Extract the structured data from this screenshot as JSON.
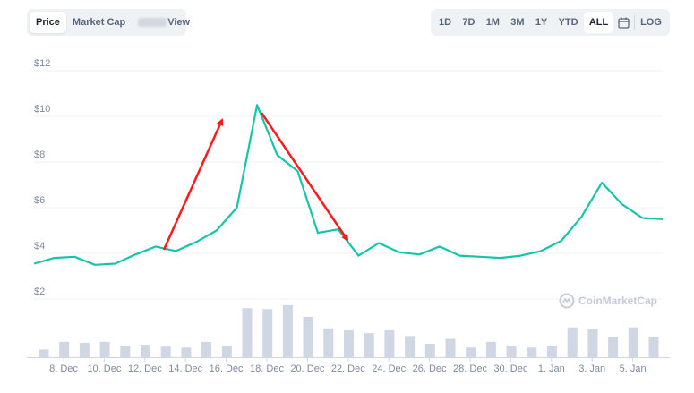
{
  "view_tabs": [
    {
      "label": "Price",
      "active": true
    },
    {
      "label": "Market Cap",
      "active": false
    },
    {
      "label": "View",
      "active": false,
      "label_prefix_obscured": true
    }
  ],
  "range_buttons": [
    {
      "label": "1D"
    },
    {
      "label": "7D"
    },
    {
      "label": "1M"
    },
    {
      "label": "3M"
    },
    {
      "label": "1Y"
    },
    {
      "label": "YTD"
    },
    {
      "label": "ALL",
      "active": true
    }
  ],
  "calendar_icon": "calendar-icon",
  "log_label": "LOG",
  "watermark": {
    "text": "CoinMarketCap",
    "icon": "coinmarketcap-logo-icon"
  },
  "colors": {
    "line": "#16c5a8",
    "volume": "#cfd6e4",
    "arrow": "#ff1a1a",
    "grid": "#eff2f5",
    "axis_text": "#808a9d"
  },
  "chart_data": {
    "type": "line",
    "x_tick_labels": [
      "8. Dec",
      "10. Dec",
      "12. Dec",
      "14. Dec",
      "16. Dec",
      "18. Dec",
      "20. Dec",
      "22. Dec",
      "24. Dec",
      "26. Dec",
      "28. Dec",
      "30. Dec",
      "1. Jan",
      "3. Jan",
      "5. Jan"
    ],
    "y_tick_labels": [
      "$2",
      "$4",
      "$6",
      "$8",
      "$10",
      "$12"
    ],
    "ylim": [
      0,
      12
    ],
    "grid": true,
    "series": [
      {
        "kind": "price",
        "values": [
          3.55,
          3.8,
          3.85,
          3.5,
          3.55,
          3.95,
          4.3,
          4.1,
          4.5,
          5.0,
          6.0,
          10.5,
          8.3,
          7.6,
          4.9,
          5.05,
          3.9,
          4.45,
          4.05,
          3.95,
          4.3,
          3.9,
          3.85,
          3.8,
          3.9,
          4.1,
          4.55,
          5.6,
          7.1,
          6.15,
          5.55,
          5.5
        ]
      },
      {
        "kind": "volume",
        "values": [
          0.08,
          0.16,
          0.15,
          0.16,
          0.12,
          0.13,
          0.11,
          0.1,
          0.16,
          0.12,
          0.51,
          0.5,
          0.54,
          0.42,
          0.3,
          0.28,
          0.25,
          0.28,
          0.22,
          0.14,
          0.19,
          0.1,
          0.16,
          0.12,
          0.1,
          0.12,
          0.31,
          0.29,
          0.21,
          0.31,
          0.21
        ]
      }
    ],
    "annotations": [
      {
        "type": "arrow",
        "direction": "up",
        "from_index": 7,
        "to_index": 10
      },
      {
        "type": "arrow",
        "direction": "down",
        "from_index": 12,
        "to_index": 16
      }
    ]
  }
}
